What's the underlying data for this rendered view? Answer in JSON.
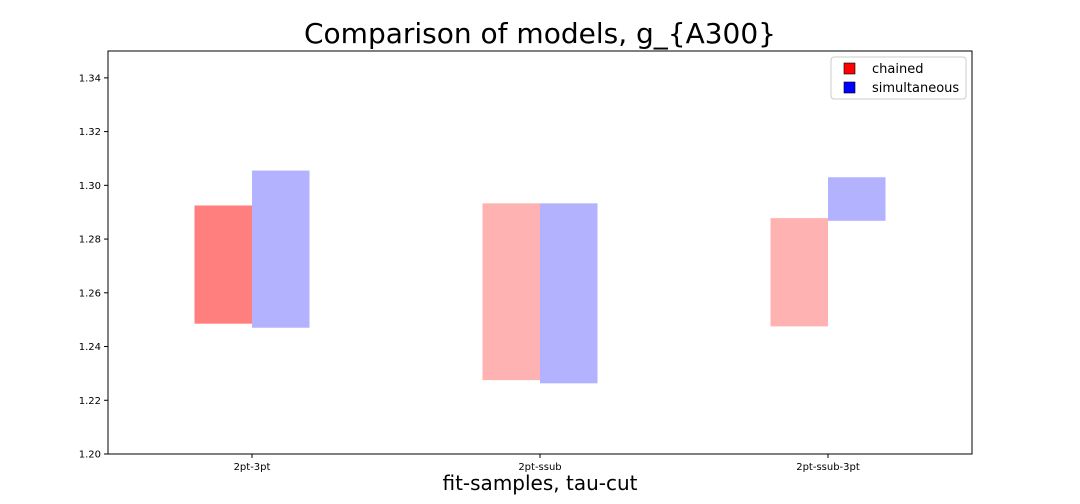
{
  "chart_data": {
    "type": "bar",
    "title": "Comparison of models, g_{A300}",
    "xlabel": "fit-samples, tau-cut",
    "ylabel": "",
    "categories": [
      "2pt-3pt",
      "2pt-ssub",
      "2pt-ssub-3pt"
    ],
    "ylim": [
      1.2,
      1.35
    ],
    "yticks": [
      "1.20",
      "1.22",
      "1.24",
      "1.26",
      "1.28",
      "1.30",
      "1.32",
      "1.34"
    ],
    "grid": false,
    "legend_position": "top-right",
    "series": [
      {
        "name": "chained",
        "color": "#ff0000",
        "ranges": [
          [
            1.2485,
            1.2925
          ],
          [
            1.2275,
            1.2933
          ],
          [
            1.2475,
            1.2878
          ]
        ],
        "opacities": [
          0.5,
          0.3,
          0.3
        ]
      },
      {
        "name": "simultaneous",
        "color": "#0000ff",
        "ranges": [
          [
            1.247,
            1.3055
          ],
          [
            1.2263,
            1.2933
          ],
          [
            1.2868,
            1.303
          ]
        ],
        "opacities": [
          0.3,
          0.3,
          0.3
        ]
      }
    ]
  }
}
